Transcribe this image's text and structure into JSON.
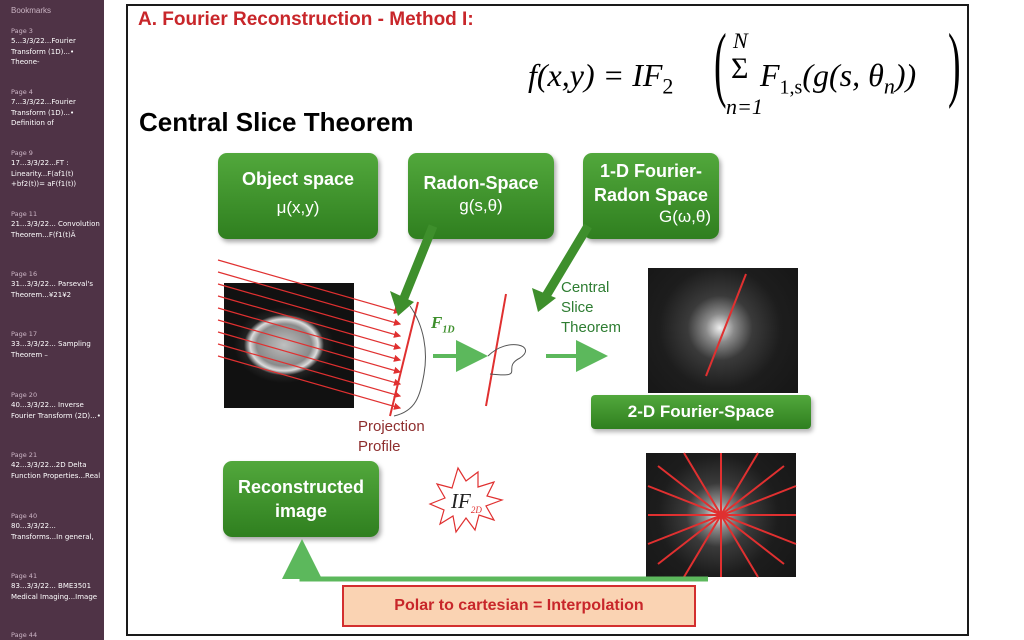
{
  "sidebar": {
    "header": "Bookmarks",
    "items": [
      {
        "page": "Page 3",
        "text": "5...3/3/22...Fourier Transform (1D)...• Theone-"
      },
      {
        "page": "Page 4",
        "text": "7...3/3/22...Fourier Transform (1D)...• Definition of"
      },
      {
        "page": "Page 9",
        "text": "17...3/3/22...FT : Linearity...F(af1(t) +bf2(t))= aF(f1(t))"
      },
      {
        "page": "Page 11",
        "text": "21...3/3/22... Convolution Theorem...F(f1(t)Ä"
      },
      {
        "page": "Page 16",
        "text": "31...3/3/22... Parseval's Theorem...¥21¥2"
      },
      {
        "page": "Page 17",
        "text": "33...3/3/22... Sampling Theorem –"
      },
      {
        "page": "Page 20",
        "text": "40...3/3/22... Inverse Fourier Transform (2D)...•"
      },
      {
        "page": "Page 21",
        "text": "42...3/3/22...2D Delta Function Properties...Real"
      },
      {
        "page": "Page 40",
        "text": "80...3/3/22... Transforms...In general,"
      },
      {
        "page": "Page 41",
        "text": "83...3/3/22... BME3501 Medical Imaging...Image"
      },
      {
        "page": "Page 44",
        "text": ""
      }
    ]
  },
  "slide": {
    "title": "A. Fourier Reconstruction - Method I:",
    "heading": "Central Slice Theorem",
    "formula": {
      "lhs": "f(x,y) = IF",
      "lhs_sub": "2",
      "sum_top": "N",
      "sum_bottom": "n=1",
      "sigma": "Σ",
      "F": "F",
      "F_sub": "1,s",
      "inner": "(g(s, θ",
      "theta_sub": "n",
      "inner_close": "))"
    },
    "boxes": {
      "object_l1": "Object space",
      "object_l2": "μ(x,y)",
      "radon_l1": "Radon-Space",
      "radon_l2": "g(s,θ)",
      "fourier_l1": "1-D Fourier-",
      "fourier_l2": "Radon Space",
      "fourier_l3": "G(ω,θ)",
      "recon_l1": "Reconstructed",
      "recon_l2": "image"
    },
    "f1d": "F",
    "f1d_sub": "1D",
    "central_slice": [
      "Central",
      "Slice",
      "Theorem"
    ],
    "projection": [
      "Projection",
      "Profile"
    ],
    "twod_label": "2-D Fourier-Space",
    "if_label": "IF",
    "if_sub": "2D",
    "interp_label": "Polar to cartesian = Interpolation",
    "colors": {
      "title_red": "#c8262a",
      "box_green": "#3e8f2c",
      "arrow_green": "#5cb85c",
      "line_red": "#e03030",
      "sidebar": "#4f3346"
    }
  }
}
